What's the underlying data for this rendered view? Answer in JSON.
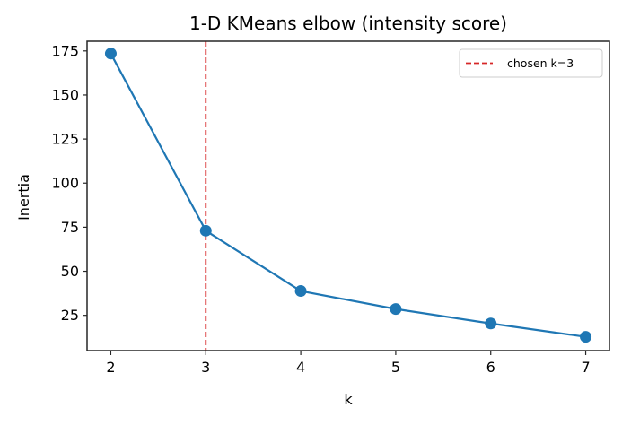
{
  "chart_data": {
    "type": "line",
    "title": "1-D KMeans elbow (intensity score)",
    "xlabel": "k",
    "ylabel": "Inertia",
    "x": [
      2,
      3,
      4,
      5,
      6,
      7
    ],
    "series": [
      {
        "name": "inertia",
        "values": [
          173.5,
          73.0,
          38.8,
          28.6,
          20.4,
          12.8
        ],
        "color": "#1f77b4",
        "marker": "o"
      }
    ],
    "annotations": [
      {
        "type": "vline",
        "x": 3,
        "label": "chosen k=3",
        "color": "#d62728",
        "style": "dashed"
      }
    ],
    "xticks": [
      2,
      3,
      4,
      5,
      6,
      7
    ],
    "yticks": [
      25,
      50,
      75,
      100,
      125,
      150,
      175
    ],
    "xlim": [
      1.75,
      7.25
    ],
    "ylim": [
      5,
      180.5
    ],
    "grid": false,
    "legend": {
      "position": "upper right",
      "entries": [
        "chosen k=3"
      ]
    }
  }
}
